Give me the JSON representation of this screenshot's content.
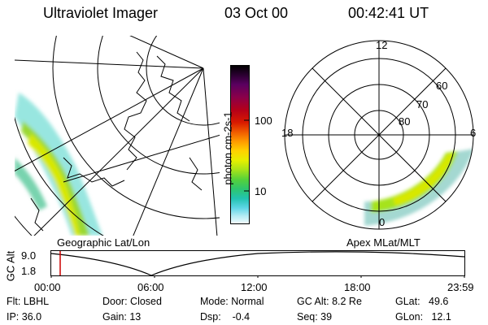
{
  "header": {
    "title": "Ultraviolet Imager",
    "date": "03 Oct 00",
    "time": "00:42:41 UT"
  },
  "colorbar": {
    "label": "photon cm-2s-1",
    "ticks": [
      "100",
      "10"
    ],
    "colors": [
      "#000000",
      "#2a0030",
      "#5a0060",
      "#8a004a",
      "#b4001a",
      "#d81a00",
      "#f05a00",
      "#ff9a00",
      "#ffd200",
      "#e6ef00",
      "#a6e31a",
      "#55d23a",
      "#2ec66e",
      "#22c3b0",
      "#5fd6e6",
      "#b4ecf4",
      "#f4fbfd"
    ]
  },
  "left_panel": {
    "caption": "Geographic Lat/Lon"
  },
  "right_panel": {
    "caption": "Apex MLat/MLT",
    "mlt_labels": {
      "top": "12",
      "left": "18",
      "right": "6",
      "bottom": "0"
    },
    "lat_labels": [
      "60",
      "70",
      "80"
    ]
  },
  "timeline": {
    "axis_label": "GC Alt",
    "y_ticks": [
      "9.0",
      "1.8"
    ],
    "x_ticks": [
      "00:00",
      "06:00",
      "12:00",
      "18:00",
      "23:59"
    ],
    "marker_color": "#cc0000"
  },
  "info": {
    "flt": "Flt: LBHL",
    "ip": "IP: 36.0",
    "door": "Door: Closed",
    "gain": "Gain: 13",
    "mode": "Mode: Normal",
    "dsp": "Dsp:    -0.4",
    "gc_alt": "GC Alt: 8.2 Re",
    "seq": "Seq: 39",
    "glat": "GLat:   49.6",
    "glon": "GLon:   12.1"
  }
}
